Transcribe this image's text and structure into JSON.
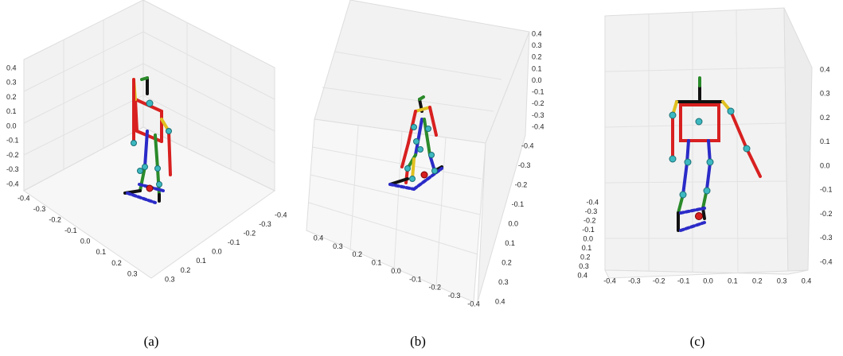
{
  "panels": [
    {
      "caption": "(a)",
      "axes": [
        {
          "ticks": [
            "0.4",
            "0.3",
            "0.2",
            "0.1",
            "0.0",
            "-0.1",
            "-0.2",
            "-0.3",
            "-0.4"
          ]
        },
        {
          "ticks": [
            "-0.4",
            "-0.3",
            "-0.2",
            "-0.1",
            "0.0",
            "0.1",
            "0.2",
            "0.3"
          ]
        },
        {
          "ticks": [
            "-0.4",
            "-0.3",
            "-0.2",
            "-0.1",
            "0.0",
            "0.1",
            "0.2",
            "0.3"
          ]
        }
      ]
    },
    {
      "caption": "(b)",
      "axes": [
        {
          "ticks": [
            "0.4",
            "0.3",
            "0.2",
            "0.1",
            "0.0",
            "-0.1",
            "-0.2",
            "-0.3",
            "-0.4"
          ]
        },
        {
          "ticks": [
            "-0.4",
            "-0.3",
            "-0.2",
            "-0.1",
            "0.0",
            "0.1",
            "0.2",
            "0.3",
            "0.4"
          ]
        },
        {
          "ticks": [
            "0.4",
            "0.3",
            "0.2",
            "0.1",
            "0.0",
            "-0.1",
            "-0.2",
            "-0.3",
            "-0.4"
          ]
        }
      ]
    },
    {
      "caption": "(c)",
      "axes": [
        {
          "ticks": [
            "-0.4",
            "-0.3",
            "-0.2",
            "-0.1",
            "0.0",
            "0.1",
            "0.2",
            "0.3",
            "0.4"
          ]
        },
        {
          "ticks": [
            "-0.4",
            "-0.3",
            "-0.2",
            "-0.1",
            "0.0",
            "0.1",
            "0.2",
            "0.3",
            "0.4"
          ]
        },
        {
          "ticks": [
            "0.4",
            "0.3",
            "0.2",
            "0.1",
            "0.0",
            "-0.1",
            "-0.2",
            "-0.3",
            "-0.4"
          ]
        }
      ]
    }
  ]
}
